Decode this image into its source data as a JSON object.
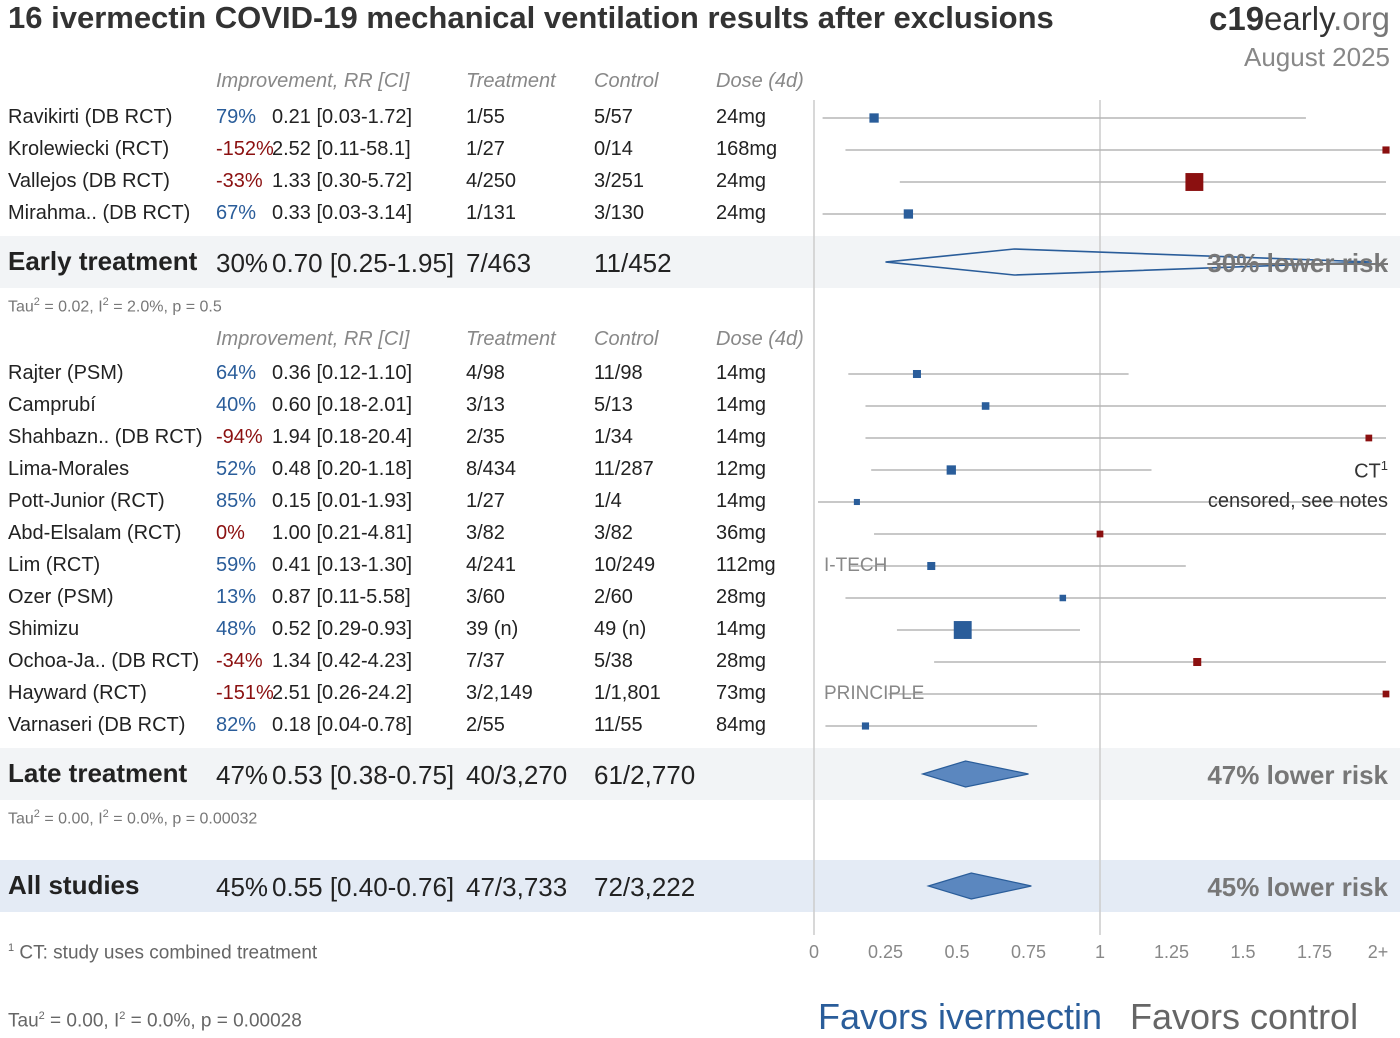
{
  "title": "16 ivermectin COVID-19 mechanical ventilation results after exclusions",
  "brand": {
    "bold": "c19",
    "rest": "early",
    "suffix": ".org",
    "date": "August 2025"
  },
  "headers": {
    "improvement": "Improvement, RR [CI]",
    "treatment": "Treatment",
    "control": "Control",
    "dose": "Dose (4d)"
  },
  "colors": {
    "favor": "#2a5d9a",
    "against": "#8b1010",
    "band": "#f2f4f6",
    "band_all": "#e4ebf5"
  },
  "early": {
    "rows": [
      {
        "study": "Ravikirti (DB RCT)",
        "improvement": "79%",
        "rr": "0.21 [0.03-1.72]",
        "treatment": "1/55",
        "control": "5/57",
        "dose": "24mg"
      },
      {
        "study": "Krolewiecki (RCT)",
        "improvement": "-152%",
        "rr": "2.52 [0.11-58.1]",
        "treatment": "1/27",
        "control": "0/14",
        "dose": "168mg"
      },
      {
        "study": "Vallejos (DB RCT)",
        "improvement": "-33%",
        "rr": "1.33 [0.30-5.72]",
        "treatment": "4/250",
        "control": "3/251",
        "dose": "24mg"
      },
      {
        "study": "Mirahma.. (DB RCT)",
        "improvement": "67%",
        "rr": "0.33 [0.03-3.14]",
        "treatment": "1/131",
        "control": "3/130",
        "dose": "24mg"
      }
    ],
    "summary": {
      "label": "Early treatment",
      "improvement": "30%",
      "rr": "0.70 [0.25-1.95]",
      "treatment": "7/463",
      "control": "11/452",
      "risk": "30% lower risk"
    },
    "stats": {
      "tau_pre": "Tau",
      "tau_post": " = 0.02, I",
      "i_post": " = 2.0%, p = 0.5"
    }
  },
  "late": {
    "rows": [
      {
        "study": "Rajter (PSM)",
        "improvement": "64%",
        "rr": "0.36 [0.12-1.10]",
        "treatment": "4/98",
        "control": "11/98",
        "dose": "14mg"
      },
      {
        "study": "Camprubí",
        "improvement": "40%",
        "rr": "0.60 [0.18-2.01]",
        "treatment": "3/13",
        "control": "5/13",
        "dose": "14mg"
      },
      {
        "study": "Shahbazn.. (DB RCT)",
        "improvement": "-94%",
        "rr": "1.94 [0.18-20.4]",
        "treatment": "2/35",
        "control": "1/34",
        "dose": "14mg"
      },
      {
        "study": "Lima-Morales",
        "improvement": "52%",
        "rr": "0.48 [0.20-1.18]",
        "treatment": "8/434",
        "control": "11/287",
        "dose": "12mg"
      },
      {
        "study": "Pott-Junior (RCT)",
        "improvement": "85%",
        "rr": "0.15 [0.01-1.93]",
        "treatment": "1/27",
        "control": "1/4",
        "dose": "14mg"
      },
      {
        "study": "Abd-Elsalam (RCT)",
        "improvement": "0%",
        "rr": "1.00 [0.21-4.81]",
        "treatment": "3/82",
        "control": "3/82",
        "dose": "36mg"
      },
      {
        "study": "Lim (RCT)",
        "improvement": "59%",
        "rr": "0.41 [0.13-1.30]",
        "treatment": "4/241",
        "control": "10/249",
        "dose": "112mg"
      },
      {
        "study": "Ozer (PSM)",
        "improvement": "13%",
        "rr": "0.87 [0.11-5.58]",
        "treatment": "3/60",
        "control": "2/60",
        "dose": "28mg"
      },
      {
        "study": "Shimizu",
        "improvement": "48%",
        "rr": "0.52 [0.29-0.93]",
        "treatment": "39 (n)",
        "control": "49 (n)",
        "dose": "14mg"
      },
      {
        "study": "Ochoa-Ja.. (DB RCT)",
        "improvement": "-34%",
        "rr": "1.34 [0.42-4.23]",
        "treatment": "7/37",
        "control": "5/38",
        "dose": "28mg"
      },
      {
        "study": "Hayward (RCT)",
        "improvement": "-151%",
        "rr": "2.51 [0.26-24.2]",
        "treatment": "3/2,149",
        "control": "1/1,801",
        "dose": "73mg"
      },
      {
        "study": "Varnaseri (DB RCT)",
        "improvement": "82%",
        "rr": "0.18 [0.04-0.78]",
        "treatment": "2/55",
        "control": "11/55",
        "dose": "84mg"
      }
    ],
    "summary": {
      "label": "Late treatment",
      "improvement": "47%",
      "rr": "0.53 [0.38-0.75]",
      "treatment": "40/3,270",
      "control": "61/2,770",
      "risk": "47% lower risk"
    },
    "stats": {
      "tau_pre": "Tau",
      "tau_post": " = 0.00, I",
      "i_post": " = 0.0%, p = 0.00032"
    }
  },
  "all": {
    "summary": {
      "label": "All studies",
      "improvement": "45%",
      "rr": "0.55 [0.40-0.76]",
      "treatment": "47/3,733",
      "control": "72/3,222",
      "risk": "45% lower risk"
    },
    "stats": {
      "tau_pre": "Tau",
      "tau_post": " = 0.00, I",
      "i_post": " = 0.0%, p = 0.00028"
    }
  },
  "annotations": {
    "ct": "CT",
    "ct_sup": "1",
    "censored": "censored, see notes",
    "itech": "I-TECH",
    "principle": "PRINCIPLE"
  },
  "footnote": {
    "num": "1",
    "text": " CT: study uses combined treatment"
  },
  "sup2": "2",
  "favors": {
    "left": "Favors ivermectin",
    "right": "Favors control"
  },
  "chart_data": {
    "type": "forest",
    "measure": "RR",
    "xticks": [
      "0",
      "0.25",
      "0.5",
      "0.75",
      "1",
      "1.25",
      "1.5",
      "1.75",
      "2+"
    ],
    "xlim": [
      0,
      2
    ],
    "null_line": 1,
    "studies": [
      {
        "name": "Ravikirti (DB RCT)",
        "group": "early",
        "rr": 0.21,
        "lo": 0.03,
        "hi": 1.72,
        "weight": 1
      },
      {
        "name": "Krolewiecki (RCT)",
        "group": "early",
        "rr": 2.52,
        "lo": 0.11,
        "hi": 58.1,
        "weight": 0.5
      },
      {
        "name": "Vallejos (DB RCT)",
        "group": "early",
        "rr": 1.33,
        "lo": 0.3,
        "hi": 5.72,
        "weight": 3
      },
      {
        "name": "Mirahma.. (DB RCT)",
        "group": "early",
        "rr": 0.33,
        "lo": 0.03,
        "hi": 3.14,
        "weight": 1
      },
      {
        "name": "Rajter (PSM)",
        "group": "late",
        "rr": 0.36,
        "lo": 0.12,
        "hi": 1.1,
        "weight": 0.7
      },
      {
        "name": "Camprubí",
        "group": "late",
        "rr": 0.6,
        "lo": 0.18,
        "hi": 2.01,
        "weight": 0.6
      },
      {
        "name": "Shahbazn.. (DB RCT)",
        "group": "late",
        "rr": 1.94,
        "lo": 0.18,
        "hi": 20.4,
        "weight": 0.4
      },
      {
        "name": "Lima-Morales",
        "group": "late",
        "rr": 0.48,
        "lo": 0.2,
        "hi": 1.18,
        "weight": 1
      },
      {
        "name": "Pott-Junior (RCT)",
        "group": "late",
        "rr": 0.15,
        "lo": 0.01,
        "hi": 1.93,
        "weight": 0.25
      },
      {
        "name": "Abd-Elsalam (RCT)",
        "group": "late",
        "rr": 1.0,
        "lo": 0.21,
        "hi": 4.81,
        "weight": 0.4
      },
      {
        "name": "Lim (RCT)",
        "group": "late",
        "rr": 0.41,
        "lo": 0.13,
        "hi": 1.3,
        "weight": 0.7
      },
      {
        "name": "Ozer (PSM)",
        "group": "late",
        "rr": 0.87,
        "lo": 0.11,
        "hi": 5.58,
        "weight": 0.35
      },
      {
        "name": "Shimizu",
        "group": "late",
        "rr": 0.52,
        "lo": 0.29,
        "hi": 0.93,
        "weight": 3
      },
      {
        "name": "Ochoa-Ja.. (DB RCT)",
        "group": "late",
        "rr": 1.34,
        "lo": 0.42,
        "hi": 4.23,
        "weight": 0.7
      },
      {
        "name": "Hayward (RCT)",
        "group": "late",
        "rr": 2.51,
        "lo": 0.26,
        "hi": 24.2,
        "weight": 0.4
      },
      {
        "name": "Varnaseri (DB RCT)",
        "group": "late",
        "rr": 0.18,
        "lo": 0.04,
        "hi": 0.78,
        "weight": 0.5
      }
    ],
    "summaries": [
      {
        "name": "Early treatment",
        "rr": 0.7,
        "lo": 0.25,
        "hi": 1.95
      },
      {
        "name": "Late treatment",
        "rr": 0.53,
        "lo": 0.38,
        "hi": 0.75
      },
      {
        "name": "All studies",
        "rr": 0.55,
        "lo": 0.4,
        "hi": 0.76
      }
    ]
  }
}
